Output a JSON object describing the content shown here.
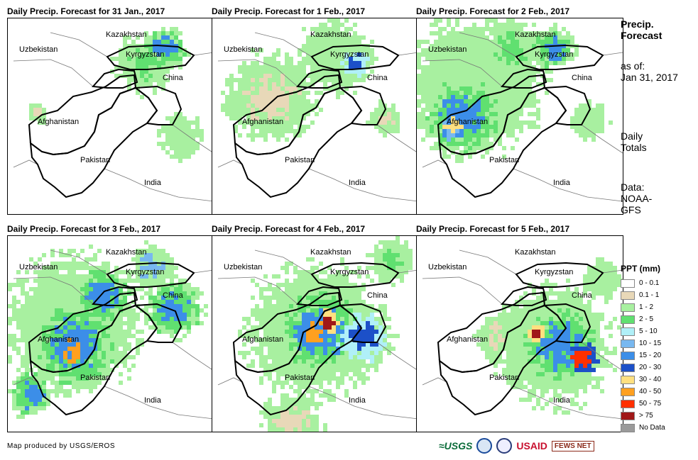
{
  "panels": [
    {
      "title": "Daily Precip. Forecast for 31 Jan., 2017",
      "level": 0
    },
    {
      "title": "Daily Precip. Forecast for 1 Feb., 2017",
      "level": 1
    },
    {
      "title": "Daily Precip. Forecast for 2 Feb., 2017",
      "level": 2
    },
    {
      "title": "Daily Precip. Forecast for 3 Feb., 2017",
      "level": 3
    },
    {
      "title": "Daily Precip. Forecast for 4 Feb., 2017",
      "level": 4
    },
    {
      "title": "Daily Precip. Forecast for 5 Feb., 2017",
      "level": 5
    }
  ],
  "map_labels": {
    "kazakhstan": "Kazakhstan",
    "uzbekistan": "Uzbekistan",
    "kyrgyzstan": "Kyrgyzstan",
    "china": "China",
    "afghanistan": "Afghanistan",
    "pakistan": "Pakistan",
    "india": "India"
  },
  "side": {
    "title_line1": "Precip.",
    "title_line2": "Forecast",
    "asof_line1": "as of:",
    "asof_line2": "Jan 31, 2017",
    "daily_line1": "Daily",
    "daily_line2": "Totals",
    "data_line1": "Data:",
    "data_line2": "NOAA-",
    "data_line3": "GFS"
  },
  "legend": {
    "title": "PPT (mm)",
    "items": [
      {
        "label": "0 - 0.1",
        "color": "#ffffff"
      },
      {
        "label": "0.1 - 1",
        "color": "#e8d8b8"
      },
      {
        "label": "1 - 2",
        "color": "#a8f0a0"
      },
      {
        "label": "2 - 5",
        "color": "#60e070"
      },
      {
        "label": "5 - 10",
        "color": "#b0f0f8"
      },
      {
        "label": "10 - 15",
        "color": "#78b8f0"
      },
      {
        "label": "15 - 20",
        "color": "#3c8ee8"
      },
      {
        "label": "20 - 30",
        "color": "#1c50c8"
      },
      {
        "label": "30 - 40",
        "color": "#ffe080"
      },
      {
        "label": "40 - 50",
        "color": "#ffa020"
      },
      {
        "label": "50 - 75",
        "color": "#ff3000"
      },
      {
        "label": "> 75",
        "color": "#a01818"
      },
      {
        "label": "No Data",
        "color": "#9a9a9a"
      }
    ]
  },
  "footer": {
    "credit": "Map produced by USGS/EROS",
    "logo_usgs": "≈USGS",
    "logo_usaid": "USAID",
    "logo_fews": "FEWS NET"
  }
}
